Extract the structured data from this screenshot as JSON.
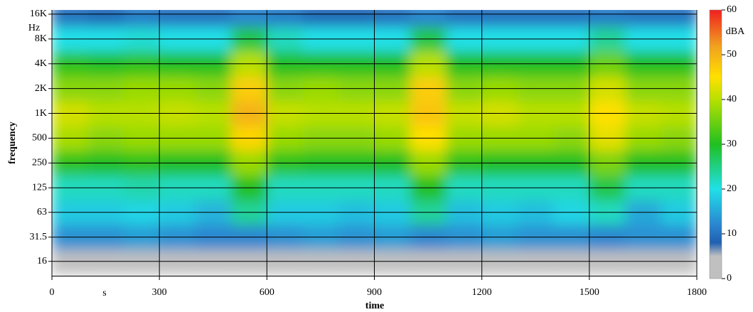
{
  "chart_data": {
    "type": "heatmap",
    "xlabel": "time",
    "ylabel": "frequency",
    "x_unit": "s",
    "y_unit": "Hz",
    "colorbar_label": "dBA",
    "xlim": [
      0,
      1800
    ],
    "xticks": [
      0,
      300,
      600,
      900,
      1200,
      1500,
      1800
    ],
    "x_edges": [
      0,
      100,
      200,
      300,
      400,
      500,
      600,
      700,
      800,
      900,
      1000,
      1100,
      1200,
      1300,
      1400,
      1500,
      1600,
      1700,
      1800
    ],
    "ylim": [
      10.7,
      18000
    ],
    "y_log": true,
    "yticks": [
      16,
      31.5,
      63,
      125,
      250,
      500,
      {
        "value": 1000,
        "label": "1K"
      },
      {
        "value": 2000,
        "label": "2K"
      },
      {
        "value": 4000,
        "label": "4K"
      },
      {
        "value": 8000,
        "label": "8K"
      },
      {
        "value": 16000,
        "label": "16K"
      }
    ],
    "grid": true,
    "z": [
      [
        3,
        3,
        3,
        4,
        5,
        5,
        5,
        4,
        3,
        3,
        4,
        5,
        5,
        4,
        4,
        4,
        5,
        5
      ],
      [
        13,
        13,
        14,
        13,
        12,
        12,
        13,
        14,
        13,
        14,
        12,
        13,
        14,
        13,
        13,
        12,
        13,
        13
      ],
      [
        18,
        18,
        19,
        18,
        16,
        24,
        18,
        18,
        17,
        18,
        24,
        17,
        18,
        17,
        19,
        22,
        15,
        18
      ],
      [
        22,
        22,
        23,
        22,
        22,
        30,
        22,
        22,
        22,
        22,
        30,
        22,
        22,
        22,
        22,
        28,
        22,
        22
      ],
      [
        31,
        30,
        31,
        30,
        30,
        38,
        31,
        30,
        30,
        30,
        38,
        31,
        30,
        30,
        30,
        36,
        30,
        30
      ],
      [
        39,
        37,
        38,
        38,
        38,
        46,
        38,
        37,
        37,
        38,
        45,
        38,
        38,
        38,
        37,
        43,
        38,
        37
      ],
      [
        42,
        40,
        40,
        41,
        40,
        50,
        41,
        40,
        40,
        41,
        48,
        41,
        42,
        40,
        40,
        45,
        41,
        40
      ],
      [
        37,
        37,
        38,
        38,
        37,
        47,
        37,
        38,
        37,
        37,
        47,
        37,
        38,
        37,
        37,
        42,
        37,
        37
      ],
      [
        31,
        30,
        31,
        30,
        30,
        40,
        30,
        30,
        30,
        30,
        40,
        30,
        30,
        30,
        30,
        35,
        30,
        30
      ],
      [
        20,
        20,
        21,
        20,
        20,
        28,
        22,
        20,
        20,
        20,
        28,
        20,
        20,
        20,
        20,
        24,
        20,
        20
      ],
      [
        10,
        9,
        11,
        10,
        10,
        12,
        11,
        9,
        9,
        10,
        12,
        10,
        10,
        10,
        10,
        11,
        10,
        10
      ]
    ],
    "zlim": [
      0,
      60
    ],
    "colorbar_ticks": [
      0,
      10,
      20,
      30,
      40,
      50,
      60
    ],
    "colormap": [
      [
        0,
        "#c0c0c0"
      ],
      [
        5,
        "#c0c0c0"
      ],
      [
        8,
        "#2060b0"
      ],
      [
        12,
        "#2a86d0"
      ],
      [
        20,
        "#20e0e8"
      ],
      [
        30,
        "#20c020"
      ],
      [
        40,
        "#b8e000"
      ],
      [
        45,
        "#ffe000"
      ],
      [
        52,
        "#f0a020"
      ],
      [
        60,
        "#f02020"
      ]
    ]
  }
}
